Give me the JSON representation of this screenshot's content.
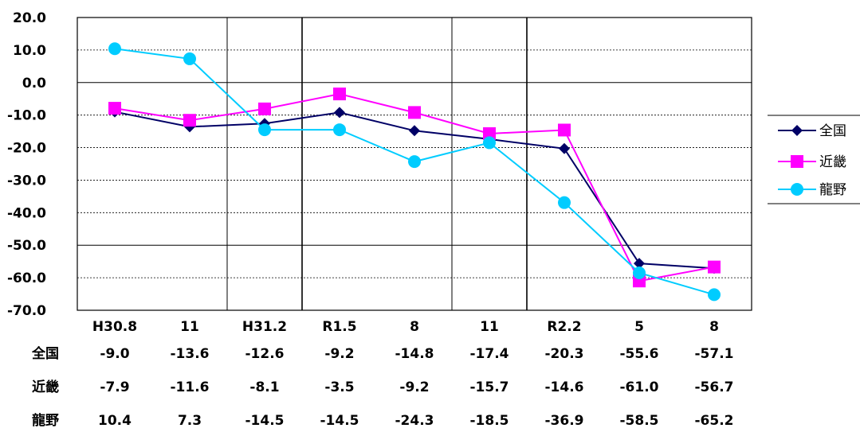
{
  "chart_data": {
    "type": "line",
    "categories": [
      "H30.8",
      "11",
      "H31.2",
      "R1.5",
      "8",
      "11",
      "R2.2",
      "5",
      "8"
    ],
    "ylim": [
      -70,
      20
    ],
    "yticks": [
      "20.0",
      "10.0",
      "0.0",
      "-10.0",
      "-20.0",
      "-30.0",
      "-40.0",
      "-50.0",
      "-60.0",
      "-70.0"
    ],
    "legend_position": "right",
    "grid": "horizontal dotted",
    "series": [
      {
        "name": "全国",
        "color": "#000066",
        "marker": "diamond",
        "values": [
          -9.0,
          -13.6,
          -12.6,
          -9.2,
          -14.8,
          -17.4,
          -20.3,
          -55.6,
          -57.1
        ],
        "labels": [
          "-9.0",
          "-13.6",
          "-12.6",
          "-9.2",
          "-14.8",
          "-17.4",
          "-20.3",
          "-55.6",
          "-57.1"
        ]
      },
      {
        "name": "近畿",
        "color": "#ff00ff",
        "marker": "square",
        "values": [
          -7.9,
          -11.6,
          -8.1,
          -3.5,
          -9.2,
          -15.7,
          -14.6,
          -61.0,
          -56.7
        ],
        "labels": [
          "-7.9",
          "-11.6",
          "-8.1",
          "-3.5",
          "-9.2",
          "-15.7",
          "-14.6",
          "-61.0",
          "-56.7"
        ]
      },
      {
        "name": "龍野",
        "color": "#00ccff",
        "marker": "circle",
        "values": [
          10.4,
          7.3,
          -14.5,
          -14.5,
          -24.3,
          -18.5,
          -36.9,
          -58.5,
          -65.2
        ],
        "labels": [
          "10.4",
          "7.3",
          "-14.5",
          "-14.5",
          "-24.3",
          "-18.5",
          "-36.9",
          "-58.5",
          "-65.2"
        ]
      }
    ]
  }
}
